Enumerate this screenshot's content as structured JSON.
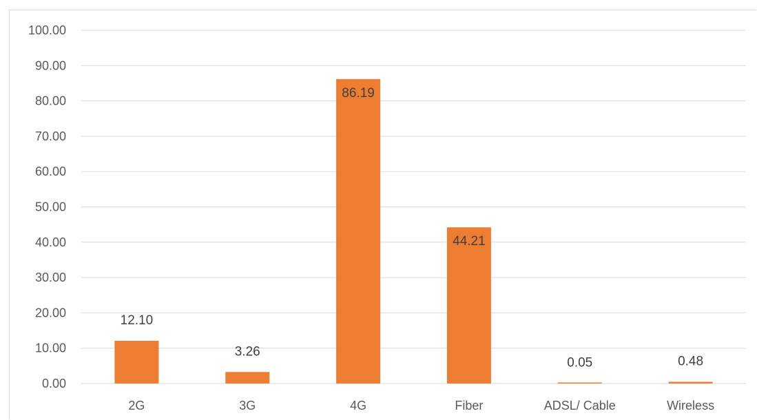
{
  "chart_data": {
    "type": "bar",
    "title": "",
    "xlabel": "",
    "ylabel": "",
    "categories": [
      "2G",
      "3G",
      "4G",
      "Fiber",
      "ADSL/ Cable",
      "Wireless"
    ],
    "values": [
      12.1,
      3.26,
      86.19,
      44.21,
      0.05,
      0.48
    ],
    "data_labels": [
      "12.10",
      "3.26",
      "86.19",
      "44.21",
      "0.05",
      "0.48"
    ],
    "y_ticks": [
      "0.00",
      "10.00",
      "20.00",
      "30.00",
      "40.00",
      "50.00",
      "60.00",
      "70.00",
      "80.00",
      "90.00",
      "100.00"
    ],
    "ylim": [
      0,
      100
    ],
    "grid": true,
    "legend": "none",
    "bar_color": "#ed7d31",
    "grid_color": "#d9d9d9",
    "text_color": "#595959"
  }
}
